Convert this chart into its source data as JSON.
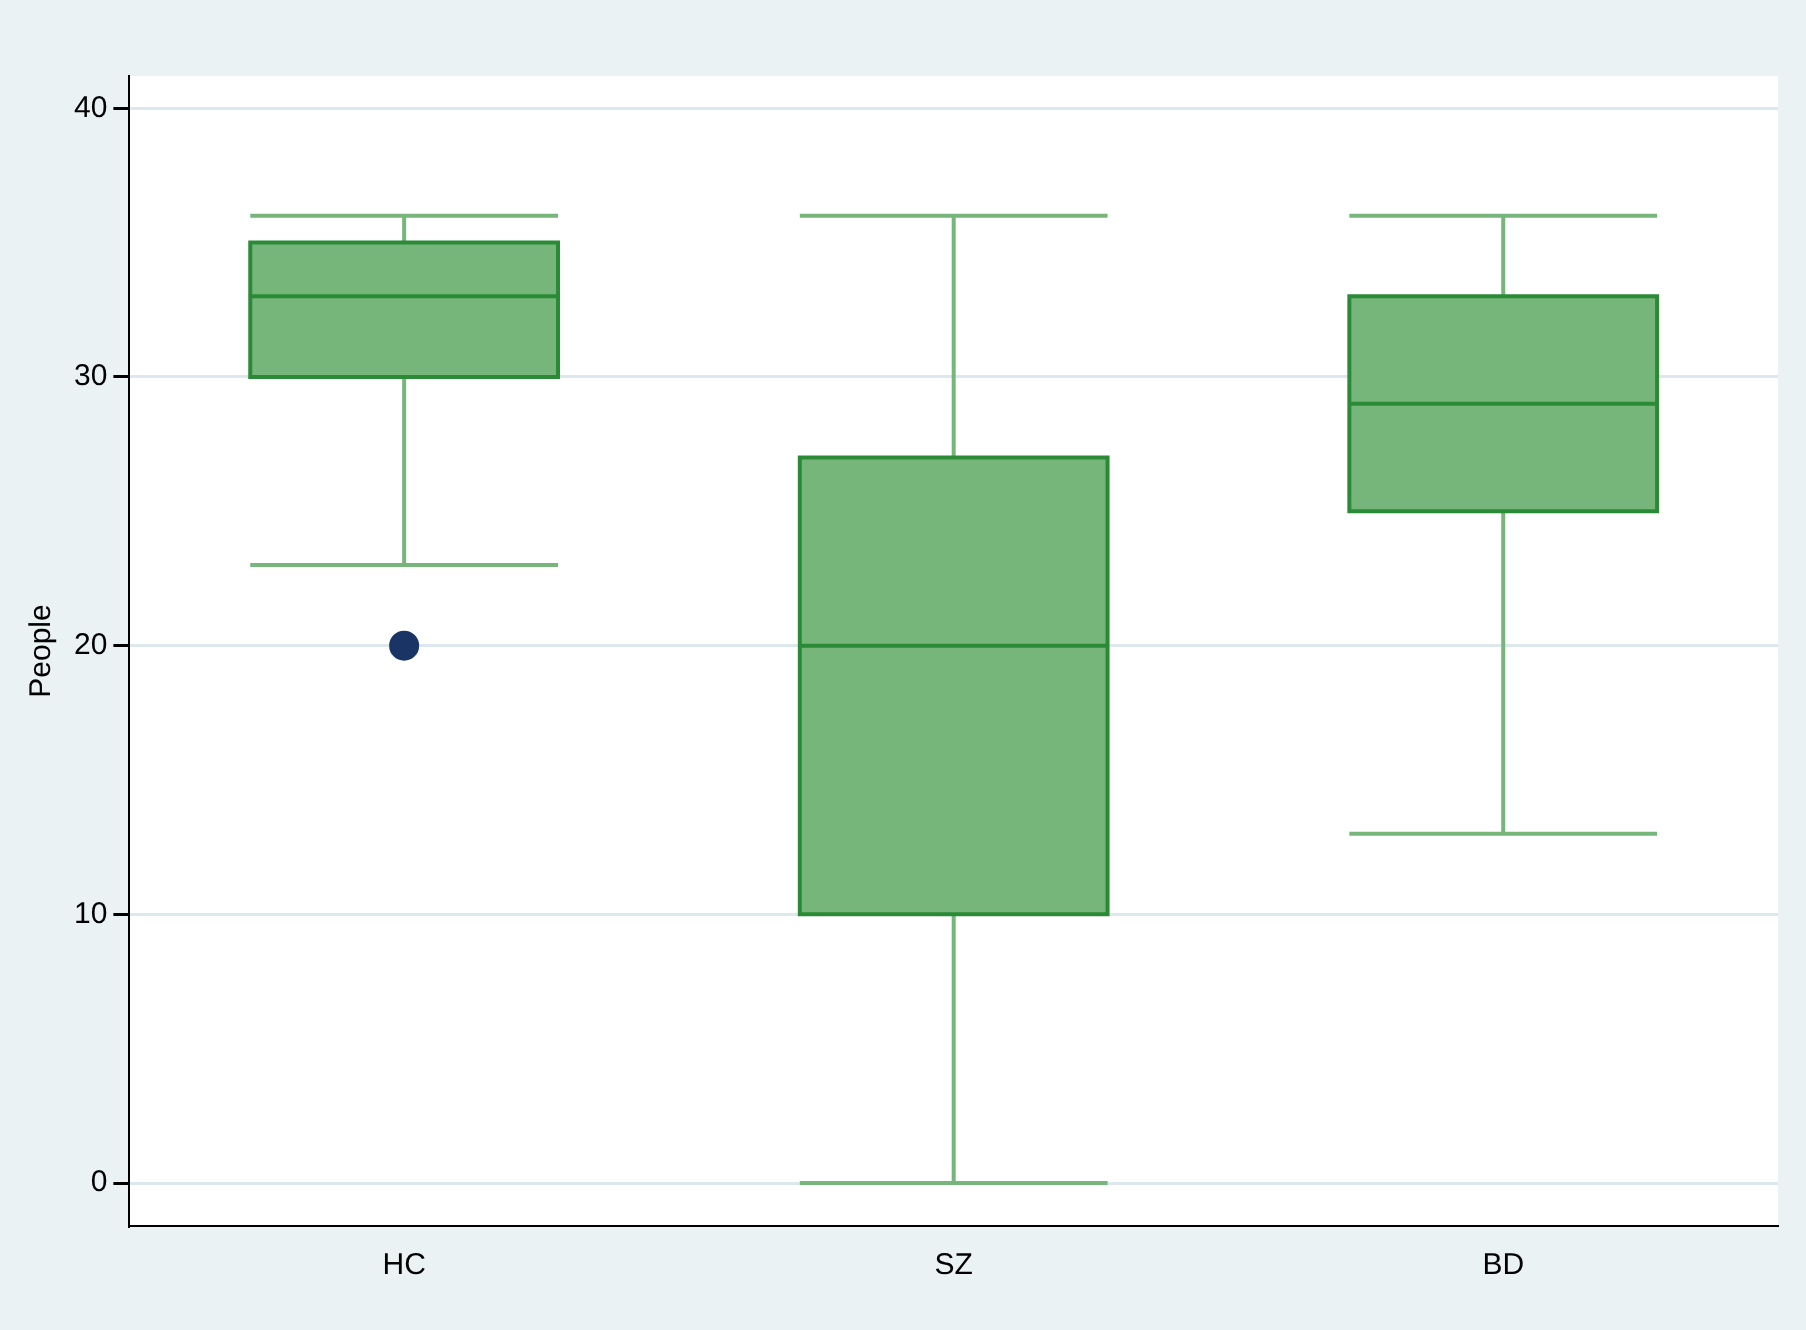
{
  "chart_data": {
    "type": "box",
    "ylabel": "People",
    "categories": [
      "HC",
      "SZ",
      "BD"
    ],
    "color": "#77b67a",
    "boxes": [
      {
        "low": 23,
        "q1": 30,
        "median": 33,
        "q3": 35,
        "high": 36,
        "outliers": [
          20
        ]
      },
      {
        "low": 0,
        "q1": 10,
        "median": 20,
        "q3": 27,
        "high": 36
      },
      {
        "low": 13,
        "q1": 25,
        "median": 29,
        "q3": 33,
        "high": 36
      }
    ],
    "ylim": [
      -1.6,
      41.2
    ],
    "yticks": [
      0,
      10,
      20,
      30,
      40
    ],
    "grid": "y"
  }
}
